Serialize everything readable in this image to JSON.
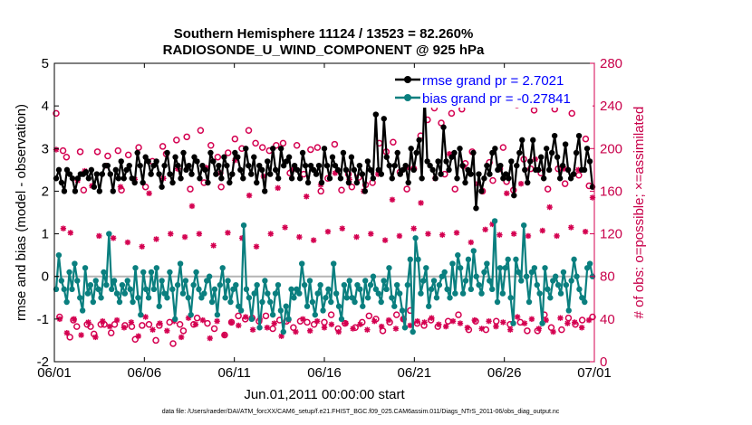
{
  "chart_data": {
    "type": "line",
    "title_line1": "Southern Hemisphere 11124 / 13523 = 82.260%",
    "title_line2": "RADIOSONDE_U_WIND_COMPONENT @ 925 hPa",
    "xlabel": "Jun.01,2011 00:00:00 start",
    "ylabel_left": "rmse and bias (model - observation)",
    "ylabel_right": "# of obs: o=possible; ×=assimilated",
    "footer": "data file: /Users/raeder/DAI/ATM_forcXX/CAM6_setup/f.e21.FHIST_BGC.f09_025.CAM6assim.011/Diags_NTrS_2011-06/obs_diag_output.nc",
    "xlim": [
      0,
      30
    ],
    "ylim_left": [
      -2,
      5
    ],
    "ylim_right": [
      0,
      280
    ],
    "x_ticks": [
      0,
      5,
      10,
      15,
      20,
      25,
      30
    ],
    "x_tick_labels": [
      "06/01",
      "06/06",
      "06/11",
      "06/16",
      "06/21",
      "06/26",
      "07/01"
    ],
    "y_ticks_left": [
      -2,
      -1,
      0,
      1,
      2,
      3,
      4,
      5
    ],
    "y_tick_labels_left": [
      "-2",
      "-1",
      "0",
      "1",
      "2",
      "3",
      "4",
      "5"
    ],
    "y_ticks_right": [
      0,
      40,
      80,
      120,
      160,
      200,
      240,
      280
    ],
    "y_tick_labels_right": [
      "0",
      "40",
      "80",
      "120",
      "160",
      "200",
      "240",
      "280"
    ],
    "legend": [
      {
        "name": "rmse grand pr = 2.7021",
        "color": "#000000"
      },
      {
        "name": "bias grand pr = -0.27841",
        "color": "#0a7f7f"
      }
    ],
    "colors": {
      "rmse": "#000000",
      "bias": "#0a7f7f",
      "obs": "#d40050",
      "zero_line": "#b4b4b4"
    },
    "series": [
      {
        "name": "rmse",
        "values": [
          2.3,
          2.5,
          2.2,
          2.0,
          2.5,
          2.4,
          2.3,
          2.0,
          2.3,
          2.4,
          2.4,
          2.45,
          2.3,
          2.5,
          2.1,
          2.4,
          2.0,
          2.4,
          2.6,
          2.6,
          2.4,
          2.0,
          2.5,
          2.3,
          2.7,
          2.3,
          2.5,
          2.6,
          2.3,
          2.2,
          2.9,
          2.6,
          2.2,
          2.8,
          2.7,
          2.4,
          2.6,
          2.7,
          2.4,
          2.1,
          2.6,
          2.9,
          2.4,
          2.2,
          2.8,
          2.6,
          2.3,
          2.9,
          2.5,
          2.6,
          2.4,
          2.8,
          2.7,
          2.3,
          2.6,
          2.5,
          2.2,
          2.9,
          2.7,
          2.4,
          2.6,
          2.3,
          2.8,
          2.6,
          2.2,
          2.4,
          2.9,
          2.8,
          2.5,
          2.3,
          3.0,
          2.6,
          2.4,
          2.8,
          2.2,
          2.6,
          2.5,
          2.0,
          2.7,
          2.4,
          3.0,
          2.5,
          2.3,
          3.0,
          2.6,
          2.7,
          2.8,
          2.3,
          2.6,
          2.5,
          2.3,
          2.9,
          2.6,
          2.2,
          2.6,
          2.5,
          2.4,
          2.6,
          2.2,
          3.0,
          2.6,
          2.3,
          2.8,
          2.6,
          2.5,
          2.3,
          2.9,
          2.5,
          2.2,
          2.8,
          2.5,
          2.2,
          2.6,
          2.4,
          2.0,
          2.7,
          2.5,
          2.3,
          3.8,
          2.5,
          2.4,
          3.7,
          2.8,
          2.6,
          2.3,
          2.6,
          2.9,
          2.4,
          2.5,
          2.6,
          2.2,
          3.0,
          2.5,
          2.9,
          3.2,
          2.3,
          4.3,
          2.7,
          2.6,
          2.5,
          2.3,
          2.7,
          2.4,
          3.5,
          2.7,
          2.5,
          2.8,
          2.9,
          2.3,
          3.0,
          2.6,
          2.2,
          2.5,
          2.4,
          2.9,
          1.6,
          2.4,
          2.0,
          2.3,
          2.6,
          2.4,
          2.9,
          3.0,
          2.5,
          2.6,
          2.3,
          2.4,
          2.3,
          2.7,
          1.9,
          2.6,
          2.9,
          3.2,
          2.5,
          2.2,
          2.7,
          3.2,
          2.5,
          2.5,
          2.8,
          2.3,
          3.0,
          2.5,
          2.9,
          3.3,
          2.8,
          2.3,
          2.6,
          3.1,
          2.5,
          2.3,
          2.4,
          2.9,
          3.3,
          2.5,
          2.5,
          3.0,
          2.7,
          2.1
        ]
      },
      {
        "name": "bias",
        "values": [
          -0.3,
          0.5,
          -0.1,
          -0.3,
          -0.6,
          0.1,
          -0.3,
          0.3,
          -0.1,
          -0.5,
          -0.8,
          0.2,
          -0.4,
          -0.2,
          -0.6,
          -0.1,
          -0.3,
          -0.5,
          0.1,
          -0.2,
          1.0,
          -0.3,
          -0.1,
          -0.4,
          -0.6,
          -0.2,
          -0.4,
          -0.1,
          -0.3,
          -0.6,
          0.2,
          -0.5,
          -0.9,
          0.1,
          -0.3,
          -0.5,
          0.1,
          -0.3,
          0.2,
          -0.7,
          -0.1,
          -0.4,
          -0.5,
          0.1,
          -0.3,
          -1.0,
          -0.2,
          0.3,
          -0.4,
          -0.1,
          -0.5,
          -0.9,
          -0.2,
          0.1,
          -0.3,
          -0.5,
          -0.4,
          -0.1,
          0.0,
          -0.6,
          -0.3,
          -0.9,
          -0.2,
          0.2,
          -0.5,
          -0.1,
          -0.6,
          -0.3,
          -0.2,
          -0.7,
          -0.8,
          1.2,
          -0.3,
          -0.5,
          -1.0,
          -0.4,
          -0.2,
          -1.2,
          -0.6,
          -0.1,
          -0.4,
          -0.6,
          -0.9,
          -0.4,
          -0.2,
          -0.8,
          -1.3,
          -0.7,
          -1.0,
          -0.3,
          -0.5,
          -0.3,
          -0.4,
          0.3,
          -0.2,
          -0.7,
          -0.1,
          -0.6,
          -0.9,
          -0.4,
          -0.2,
          -0.8,
          -0.5,
          -0.3,
          -0.6,
          0.3,
          -0.4,
          -0.7,
          -1.0,
          -0.2,
          -0.5,
          -0.1,
          -0.5,
          -0.6,
          -0.2,
          -0.3,
          -0.7,
          -0.1,
          -0.5,
          -0.2,
          0.0,
          -0.3,
          -0.4,
          -0.6,
          -0.1,
          -0.3,
          0.2,
          -0.5,
          -0.7,
          -0.2,
          -0.4,
          -0.8,
          -1.2,
          -0.2,
          0.4,
          -1.3,
          0.9,
          0.4,
          -0.4,
          -0.1,
          0.2,
          -0.7,
          -0.3,
          -0.1,
          -0.5,
          -0.2,
          0.0,
          0.1,
          -0.3,
          -0.5,
          0.3,
          -0.4,
          0.5,
          0.2,
          -0.4,
          -0.1,
          0.4,
          -0.3,
          0.6,
          0.0,
          -0.2,
          -0.4,
          0.1,
          0.3,
          -0.1,
          -0.3,
          1.3,
          -0.6,
          0.2,
          -0.4,
          0.2,
          0.4,
          -0.5,
          -1.1,
          0.4,
          0.1,
          -0.1,
          1.2,
          0.0,
          -0.6,
          0.1,
          0.2,
          -0.2,
          -0.4,
          -1.1,
          0.2,
          -0.3,
          -0.5,
          -0.1,
          0.0,
          -0.2,
          -0.4,
          0.1,
          -0.2,
          -0.8,
          -0.1,
          0.4,
          0.0,
          -0.3,
          -0.5,
          -0.6,
          0.2,
          0.3,
          0.0
        ]
      },
      {
        "name": "obs_possible",
        "values": [
          233,
          42,
          198,
          192,
          23,
          39,
          33,
          197,
          161,
          35,
          33,
          26,
          197,
          35,
          35,
          193,
          27,
          35,
          198,
          161,
          34,
          194,
          33,
          21,
          201,
          34,
          164,
          35,
          188,
          20,
          34,
          202,
          195,
          37,
          17,
          208,
          35,
          29,
          211,
          162,
          35,
          41,
          217,
          168,
          36,
          203,
          31,
          192,
          164,
          25,
          196,
          37,
          209,
          43,
          200,
          40,
          217,
          41,
          205,
          38,
          201,
          43,
          198,
          31,
          203,
          39,
          205,
          38,
          177,
          32,
          203,
          38,
          176,
          37,
          199,
          35,
          201,
          160,
          37,
          172,
          44,
          204,
          31,
          161,
          36,
          176,
          164,
          32,
          173,
          37,
          166,
          43,
          168,
          40,
          205,
          29,
          197,
          37,
          206,
          44,
          178,
          40,
          162,
          48,
          181,
          36,
          212,
          34,
          227,
          39,
          238,
          33,
          224,
          176,
          38,
          233,
          162,
          44,
          237,
          186,
          30,
          197,
          38,
          242,
          160,
          30,
          187,
          170,
          38,
          181,
          201,
          169,
          35,
          161,
          241,
          37,
          190,
          29,
          181,
          236,
          29,
          177,
          44,
          162,
          32,
          237,
          181,
          30,
          167,
          41,
          233,
          35,
          175,
          39,
          209,
          165,
          42
        ]
      },
      {
        "name": "obs_assimilated",
        "values": [
          199,
          40,
          125,
          27,
          121,
          40,
          170,
          25,
          179,
          37,
          165,
          23,
          118,
          38,
          184,
          33,
          116,
          39,
          164,
          32,
          112,
          37,
          171,
          24,
          108,
          42,
          158,
          30,
          115,
          36,
          172,
          29,
          120,
          38,
          181,
          23,
          117,
          41,
          146,
          35,
          120,
          39,
          182,
          22,
          109,
          38,
          177,
          25,
          121,
          37,
          189,
          34,
          116,
          42,
          156,
          30,
          108,
          40,
          174,
          32,
          120,
          36,
          163,
          24,
          126,
          39,
          180,
          28,
          117,
          40,
          155,
          29,
          114,
          38,
          166,
          32,
          122,
          35,
          177,
          28,
          125,
          36,
          171,
          31,
          117,
          35,
          160,
          30,
          120,
          38,
          176,
          33,
          114,
          39,
          152,
          31,
          118,
          40,
          182,
          34,
          125,
          38,
          149,
          37,
          120,
          41,
          172,
          35,
          119,
          33,
          195,
          38,
          121,
          36,
          183,
          32,
          112,
          39,
          167,
          31,
          124,
          38,
          129,
          33,
          119,
          37,
          158,
          30,
          120,
          42,
          167,
          36,
          118,
          40,
          190,
          31,
          123,
          39,
          145,
          28,
          118,
          41,
          181,
          36,
          126,
          37,
          180,
          32,
          122,
          39,
          154
        ]
      }
    ]
  }
}
